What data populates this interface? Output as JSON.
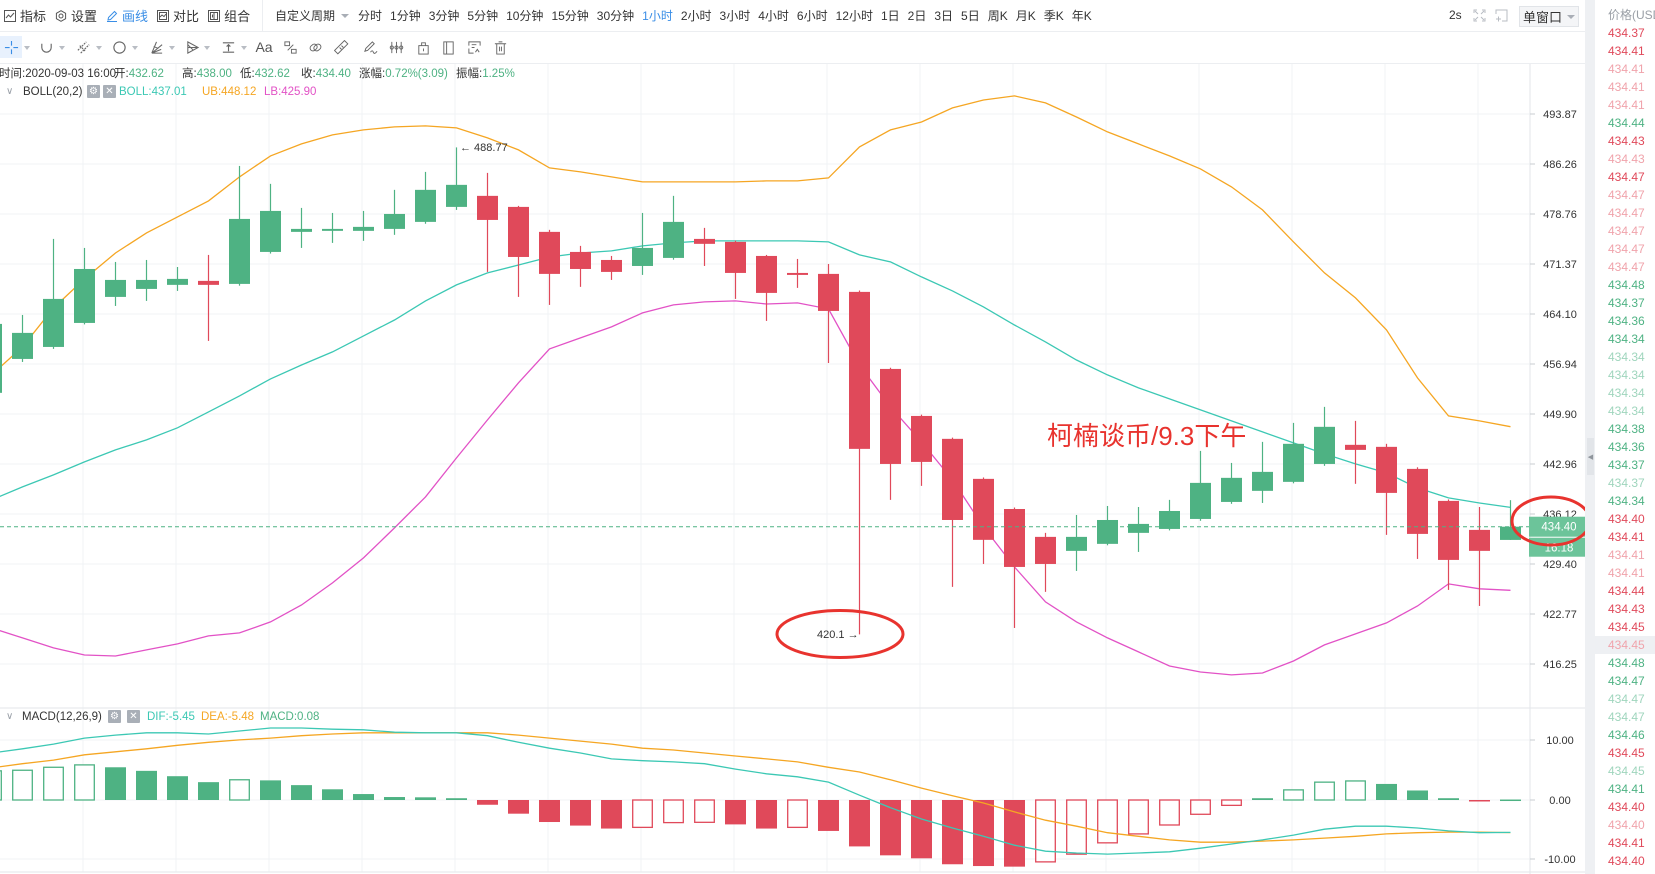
{
  "toolbar": {
    "menu": [
      {
        "label": "指标",
        "icon": "indicator-icon"
      },
      {
        "label": "设置",
        "icon": "settings-icon"
      },
      {
        "label": "画线",
        "icon": "draw-line-icon",
        "active": true
      },
      {
        "label": "对比",
        "icon": "compare-icon"
      },
      {
        "label": "组合",
        "icon": "combine-icon"
      }
    ],
    "custom_period": "自定义周期",
    "periods": [
      "分时",
      "1分钟",
      "3分钟",
      "5分钟",
      "10分钟",
      "15分钟",
      "30分钟",
      "1小时",
      "2小时",
      "3小时",
      "4小时",
      "6小时",
      "12小时",
      "1日",
      "2日",
      "3日",
      "5日",
      "周K",
      "月K",
      "季K",
      "年K"
    ],
    "active_period": "1小时",
    "refresh_interval": "2s",
    "fullscreen_icon": "fullscreen-icon",
    "add_window_icon": "add-window-icon",
    "window_mode": "单窗口"
  },
  "drawing_tools": {
    "items": [
      "crosshair-icon",
      "curve-icon",
      "parallel-channel-icon",
      "circle-icon",
      "fib-fan-icon",
      "pattern-icon",
      "measure-line-icon",
      "text-icon",
      "price-range-icon",
      "link-icon",
      "ruler-icon",
      "brush-icon",
      "bars-pattern-icon",
      "lock-icon",
      "bookmark-icon",
      "hide-drawings-icon",
      "trash-icon"
    ],
    "text_tool_label": "Aa",
    "active": "crosshair-icon"
  },
  "info": {
    "time_label": "时间:",
    "time": "2020-09-03 16:00",
    "open_label": "开:",
    "open": "432.62",
    "high_label": "高:",
    "high": "438.00",
    "low_label": "低:",
    "low": "432.62",
    "close_label": "收:",
    "close": "434.40",
    "change_label": "涨幅:",
    "change": "0.72%(3.09)",
    "amplitude_label": "振幅:",
    "amplitude": "1.25%"
  },
  "boll_legend": {
    "name": "BOLL(20,2)",
    "boll": "BOLL:437.01",
    "ub": "UB:448.12",
    "lb": "LB:425.90"
  },
  "macd_legend": {
    "name": "MACD(12,26,9)",
    "dif": "DIF:-5.45",
    "dea": "DEA:-5.48",
    "macd": "MACD:0.08"
  },
  "last_price": {
    "price": "434.40",
    "countdown": "16:18"
  },
  "annotations": {
    "high_label": "← 488.77",
    "low_label": "420.1 →",
    "note": "柯楠谈币/9.3下午"
  },
  "macd_axis": [
    "10.00",
    "0.00",
    "-10.00"
  ],
  "price_list": {
    "header": "价格(USD",
    "rows": [
      {
        "price": "434.37",
        "dir": "down",
        "faded": false
      },
      {
        "price": "434.41",
        "dir": "down",
        "faded": false
      },
      {
        "price": "434.41",
        "dir": "down",
        "faded": true
      },
      {
        "price": "434.41",
        "dir": "down",
        "faded": true
      },
      {
        "price": "434.41",
        "dir": "down",
        "faded": true
      },
      {
        "price": "434.44",
        "dir": "up",
        "faded": false
      },
      {
        "price": "434.43",
        "dir": "down",
        "faded": false
      },
      {
        "price": "434.43",
        "dir": "down",
        "faded": true
      },
      {
        "price": "434.47",
        "dir": "down",
        "faded": false
      },
      {
        "price": "434.47",
        "dir": "down",
        "faded": true
      },
      {
        "price": "434.47",
        "dir": "down",
        "faded": true
      },
      {
        "price": "434.47",
        "dir": "down",
        "faded": true
      },
      {
        "price": "434.47",
        "dir": "down",
        "faded": true
      },
      {
        "price": "434.47",
        "dir": "down",
        "faded": true
      },
      {
        "price": "434.48",
        "dir": "up",
        "faded": false
      },
      {
        "price": "434.37",
        "dir": "up",
        "faded": false
      },
      {
        "price": "434.36",
        "dir": "up",
        "faded": false
      },
      {
        "price": "434.34",
        "dir": "up",
        "faded": false
      },
      {
        "price": "434.34",
        "dir": "up",
        "faded": true
      },
      {
        "price": "434.34",
        "dir": "up",
        "faded": true
      },
      {
        "price": "434.34",
        "dir": "up",
        "faded": true
      },
      {
        "price": "434.34",
        "dir": "up",
        "faded": true
      },
      {
        "price": "434.38",
        "dir": "up",
        "faded": false
      },
      {
        "price": "434.36",
        "dir": "up",
        "faded": false
      },
      {
        "price": "434.37",
        "dir": "up",
        "faded": false
      },
      {
        "price": "434.37",
        "dir": "up",
        "faded": true
      },
      {
        "price": "434.34",
        "dir": "up",
        "faded": false
      },
      {
        "price": "434.40",
        "dir": "down",
        "faded": false
      },
      {
        "price": "434.41",
        "dir": "down",
        "faded": false
      },
      {
        "price": "434.41",
        "dir": "down",
        "faded": true
      },
      {
        "price": "434.41",
        "dir": "down",
        "faded": true
      },
      {
        "price": "434.44",
        "dir": "down",
        "faded": false
      },
      {
        "price": "434.43",
        "dir": "down",
        "faded": false
      },
      {
        "price": "434.45",
        "dir": "down",
        "faded": false
      },
      {
        "price": "434.45",
        "dir": "down",
        "faded": true,
        "highlight": true
      },
      {
        "price": "434.48",
        "dir": "up",
        "faded": false
      },
      {
        "price": "434.47",
        "dir": "up",
        "faded": false
      },
      {
        "price": "434.47",
        "dir": "up",
        "faded": true
      },
      {
        "price": "434.47",
        "dir": "up",
        "faded": true
      },
      {
        "price": "434.46",
        "dir": "up",
        "faded": false
      },
      {
        "price": "434.45",
        "dir": "down",
        "faded": false
      },
      {
        "price": "434.45",
        "dir": "up",
        "faded": true
      },
      {
        "price": "434.41",
        "dir": "up",
        "faded": false
      },
      {
        "price": "434.40",
        "dir": "down",
        "faded": false
      },
      {
        "price": "434.40",
        "dir": "down",
        "faded": true
      },
      {
        "price": "434.41",
        "dir": "down",
        "faded": false
      },
      {
        "price": "434.40",
        "dir": "down",
        "faded": false
      }
    ]
  },
  "colors": {
    "up": "#4eb283",
    "down": "#e0495a",
    "up_faded": "#9fd5bd",
    "down_faded": "#f0a3ab",
    "boll": "#3cc8b4",
    "ub": "#f5a623",
    "lb": "#e252c6",
    "dif": "#3cc8b4",
    "dea": "#f5a623",
    "accent": "#3a8ee6",
    "annotation": "#e8332e",
    "last_price_bg": "#6cc49a",
    "grid": "#f1f3f5",
    "axis": "#e3e6ea"
  },
  "chart_data": [
    {
      "type": "candlestick",
      "title": "BOLL(20,2)",
      "interval": "1小时",
      "last_time": "2020-09-03 16:00",
      "y_scale": "log",
      "ylim": [
        411.0,
        502.0
      ],
      "yticks": [
        493.87,
        486.26,
        478.76,
        471.37,
        464.1,
        456.94,
        449.9,
        442.96,
        436.12,
        429.4,
        422.77,
        416.25
      ],
      "grid": true,
      "ohlc_order": [
        "open",
        "high",
        "low",
        "close"
      ],
      "ohlc": [
        [
          452.86,
          465.41,
          451.87,
          462.67
        ],
        [
          457.66,
          463.96,
          457.23,
          461.38
        ],
        [
          459.37,
          475.06,
          459.09,
          466.28
        ],
        [
          462.81,
          473.73,
          462.6,
          470.64
        ],
        [
          466.57,
          471.67,
          465.26,
          469.04
        ],
        [
          467.73,
          471.96,
          465.99,
          469.04
        ],
        [
          468.32,
          470.93,
          467.44,
          469.19
        ],
        [
          468.9,
          472.7,
          460.23,
          468.32
        ],
        [
          468.46,
          485.96,
          468.2,
          478.02
        ],
        [
          473.14,
          483.26,
          472.9,
          479.21
        ],
        [
          476.1,
          479.66,
          473.73,
          476.54
        ],
        [
          476.25,
          478.91,
          474.47,
          476.54
        ],
        [
          476.25,
          479.21,
          474.77,
          476.84
        ],
        [
          476.54,
          482.36,
          475.66,
          478.76
        ],
        [
          477.58,
          485.06,
          477.3,
          482.36
        ],
        [
          479.81,
          488.77,
          479.36,
          483.11
        ],
        [
          481.46,
          484.91,
          470.21,
          477.87
        ],
        [
          479.81,
          479.96,
          466.57,
          472.4
        ],
        [
          476.1,
          476.4,
          465.41,
          469.92
        ],
        [
          473.14,
          474.03,
          468.03,
          470.64
        ],
        [
          471.96,
          472.55,
          469.04,
          470.21
        ],
        [
          471.08,
          478.91,
          469.77,
          473.73
        ],
        [
          472.26,
          481.46,
          472.0,
          477.58
        ],
        [
          475.06,
          476.69,
          471.08,
          474.33
        ],
        [
          474.62,
          474.8,
          466.28,
          470.06
        ],
        [
          472.55,
          472.7,
          463.1,
          467.15
        ],
        [
          470.06,
          472.11,
          467.88,
          469.77
        ],
        [
          469.92,
          471.37,
          457.08,
          464.54
        ],
        [
          467.3,
          467.5,
          420.1,
          445.04
        ],
        [
          456.24,
          456.4,
          438.04,
          442.96
        ],
        [
          449.62,
          449.8,
          439.95,
          443.24
        ],
        [
          446.43,
          446.6,
          426.35,
          435.31
        ],
        [
          440.91,
          441.1,
          429.4,
          432.63
        ],
        [
          436.8,
          437.0,
          420.94,
          429.0
        ],
        [
          433.03,
          433.57,
          425.69,
          429.4
        ],
        [
          431.15,
          435.99,
          428.47,
          433.03
        ],
        [
          432.09,
          437.21,
          431.9,
          435.31
        ],
        [
          433.57,
          437.07,
          431.01,
          434.78
        ],
        [
          434.1,
          438.04,
          433.9,
          436.53
        ],
        [
          435.45,
          444.76,
          435.2,
          440.36
        ],
        [
          437.76,
          443.1,
          437.5,
          441.05
        ],
        [
          439.27,
          446.01,
          437.62,
          441.87
        ],
        [
          440.5,
          448.65,
          440.3,
          445.74
        ],
        [
          442.96,
          450.89,
          442.7,
          448.1
        ],
        [
          445.6,
          448.93,
          440.23,
          444.9
        ],
        [
          445.32,
          445.74,
          433.3,
          438.99
        ],
        [
          442.28,
          442.5,
          430.07,
          433.43
        ],
        [
          437.9,
          438.1,
          425.95,
          429.94
        ],
        [
          433.97,
          437.07,
          423.83,
          431.15
        ],
        [
          432.62,
          438.0,
          432.62,
          434.4
        ]
      ],
      "series": [
        {
          "name": "BOLL",
          "values": [
            438.04,
            439.81,
            441.46,
            443.24,
            444.9,
            446.29,
            447.96,
            450.18,
            452.43,
            454.83,
            456.8,
            458.66,
            460.95,
            463.24,
            465.99,
            468.32,
            470.06,
            471.22,
            472.4,
            472.98,
            473.29,
            474.03,
            474.47,
            474.77,
            474.77,
            474.77,
            474.77,
            474.62,
            472.7,
            471.67,
            469.48,
            467.44,
            465.12,
            462.52,
            460.09,
            457.51,
            455.39,
            453.56,
            452.01,
            450.46,
            448.93,
            447.4,
            445.87,
            444.35,
            442.96,
            441.73,
            439.68,
            438.31,
            437.62,
            437.01
          ]
        },
        {
          "name": "UB",
          "values": [
            455.39,
            459.37,
            464.97,
            469.19,
            472.98,
            475.95,
            478.32,
            480.71,
            484.31,
            487.48,
            489.3,
            490.67,
            491.43,
            491.89,
            492.04,
            491.74,
            490.22,
            488.39,
            485.66,
            485.06,
            484.31,
            483.56,
            483.56,
            483.56,
            483.56,
            483.71,
            483.71,
            484.16,
            488.85,
            491.43,
            492.65,
            494.8,
            496.03,
            496.65,
            495.57,
            493.41,
            491.13,
            489.3,
            487.48,
            485.51,
            482.81,
            479.36,
            474.62,
            470.06,
            466.43,
            461.81,
            454.97,
            449.62,
            448.93,
            448.12
          ]
        },
        {
          "name": "LB",
          "values": [
            420.94,
            419.64,
            418.34,
            417.42,
            417.29,
            418.08,
            418.86,
            419.9,
            420.29,
            421.73,
            423.96,
            426.88,
            430.21,
            434.24,
            438.45,
            443.79,
            449.07,
            454.27,
            459.09,
            460.66,
            462.24,
            464.25,
            465.41,
            465.85,
            465.99,
            465.55,
            465.7,
            464.83,
            456.8,
            450.89,
            446.01,
            440.77,
            434.37,
            429.0,
            424.36,
            421.73,
            419.64,
            417.82,
            415.99,
            415.22,
            414.84,
            415.09,
            416.64,
            418.73,
            420.16,
            421.6,
            423.83,
            426.75,
            426.09,
            425.9
          ]
        }
      ],
      "marked_points": [
        {
          "label": "488.77",
          "kind": "high",
          "index": 15
        },
        {
          "label": "420.1",
          "kind": "low",
          "index": 28
        }
      ],
      "last_price": 434.4
    },
    {
      "type": "bar",
      "title": "MACD(12,26,9)",
      "ylim": [
        -12.5,
        15.0
      ],
      "yticks": [
        10,
        0,
        -10
      ],
      "series": [
        {
          "name": "DIF",
          "type": "line",
          "values": [
            7.9,
            8.6,
            9.4,
            10.4,
            10.9,
            11.3,
            11.3,
            11.1,
            11.6,
            12.1,
            12.1,
            11.9,
            11.8,
            11.4,
            11.3,
            11.3,
            10.8,
            9.7,
            8.7,
            7.9,
            6.9,
            6.6,
            6.4,
            6.1,
            5.2,
            4.4,
            3.9,
            3.0,
            0.8,
            -1.3,
            -3.2,
            -4.7,
            -6.1,
            -7.6,
            -8.6,
            -8.9,
            -9.1,
            -8.9,
            -8.7,
            -8.1,
            -7.4,
            -6.7,
            -5.9,
            -4.9,
            -4.4,
            -4.4,
            -4.7,
            -5.2,
            -5.5,
            -5.45
          ]
        },
        {
          "name": "DEA",
          "type": "line",
          "values": [
            5.4,
            6.1,
            6.7,
            7.6,
            8.1,
            8.6,
            9.2,
            9.7,
            10.1,
            10.4,
            10.8,
            11.1,
            11.3,
            11.3,
            11.3,
            11.3,
            11.3,
            10.9,
            10.4,
            9.9,
            9.4,
            8.7,
            8.4,
            7.9,
            7.4,
            6.9,
            6.4,
            5.5,
            4.7,
            3.4,
            2.0,
            0.7,
            -0.5,
            -2.0,
            -3.4,
            -4.4,
            -5.5,
            -6.1,
            -6.7,
            -7.1,
            -7.1,
            -6.9,
            -6.7,
            -6.4,
            -6.1,
            -5.7,
            -5.5,
            -5.4,
            -5.4,
            -5.48
          ]
        },
        {
          "name": "MACD",
          "type": "bar",
          "values": [
            4.9,
            5.0,
            5.5,
            5.9,
            5.5,
            4.9,
            4.0,
            3.0,
            3.4,
            3.3,
            2.5,
            1.8,
            1.0,
            0.5,
            0.45,
            0.3,
            -0.8,
            -2.3,
            -3.7,
            -4.3,
            -4.8,
            -4.6,
            -3.8,
            -3.75,
            -4.1,
            -4.8,
            -4.6,
            -5.2,
            -7.8,
            -9.3,
            -9.8,
            -10.8,
            -11.1,
            -11.2,
            -10.4,
            -9.1,
            -7.2,
            -5.7,
            -4.2,
            -2.4,
            -0.9,
            0.3,
            1.7,
            3.0,
            3.2,
            2.7,
            1.6,
            0.3,
            -0.2,
            0.08
          ],
          "hollow": [
            true,
            true,
            true,
            true,
            false,
            false,
            false,
            false,
            true,
            false,
            false,
            false,
            false,
            false,
            false,
            false,
            false,
            false,
            false,
            false,
            false,
            true,
            true,
            true,
            false,
            false,
            true,
            false,
            false,
            false,
            false,
            false,
            false,
            false,
            true,
            true,
            true,
            true,
            true,
            true,
            true,
            false,
            true,
            true,
            true,
            false,
            false,
            false,
            false,
            false
          ]
        }
      ]
    }
  ]
}
